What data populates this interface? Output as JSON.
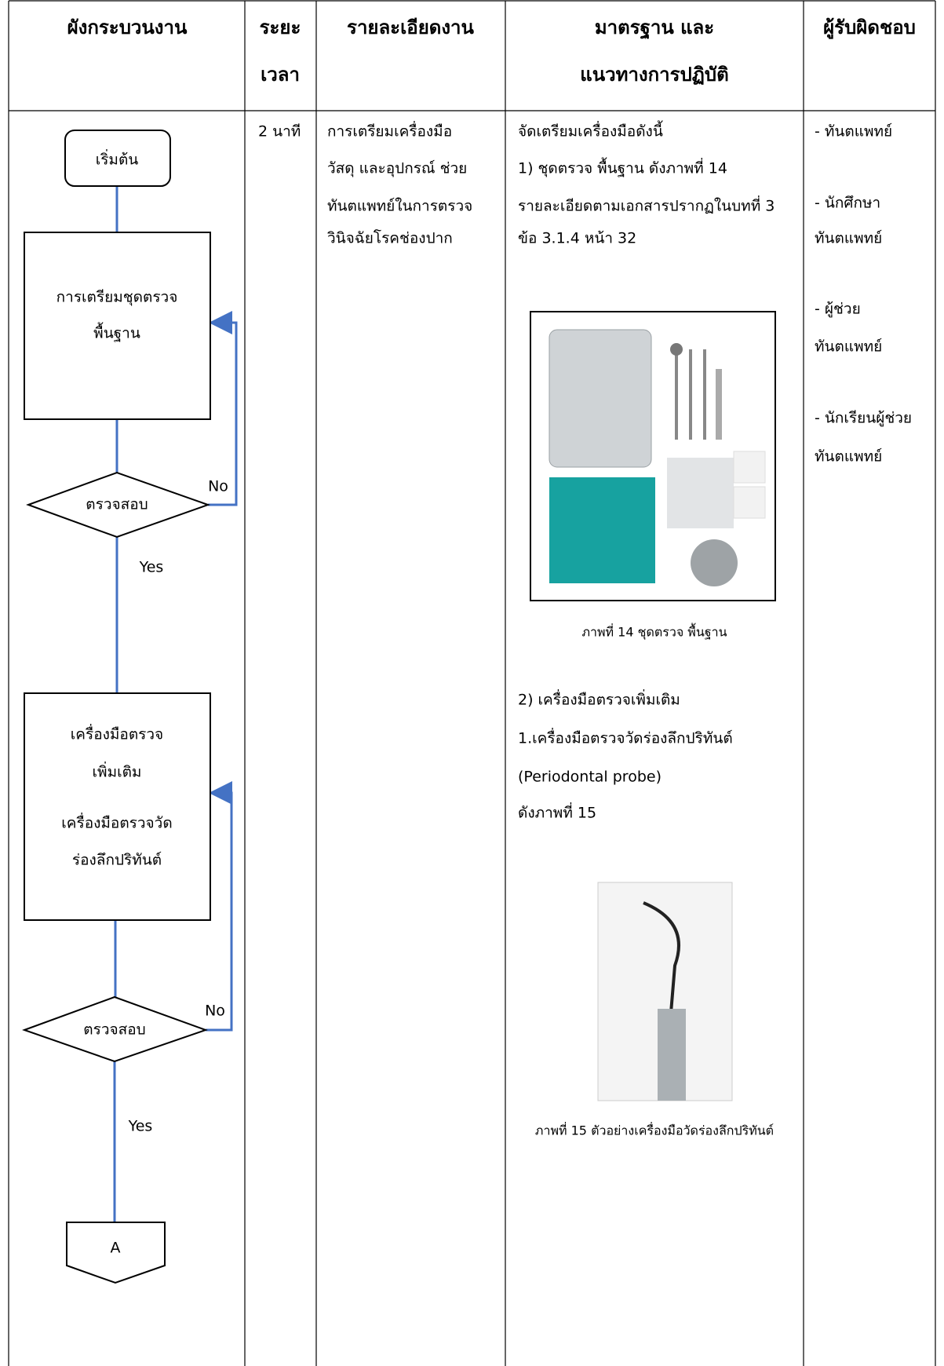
{
  "table": {
    "headers": [
      [
        "ผังกระบวนงาน"
      ],
      [
        "ระยะ",
        "เวลา"
      ],
      [
        "รายละเอียดงาน"
      ],
      [
        "มาตรฐาน และ",
        "แนวทางการปฏิบัติ"
      ],
      [
        "ผู้รับผิดชอบ"
      ]
    ],
    "time": "2 นาที",
    "detail": [
      "การเตรียมเครื่องมือ",
      "วัสดุ และอุปกรณ์ ช่วย",
      "ทันตแพทย์ในการตรวจ",
      "วินิจฉัยโรคช่องปาก"
    ],
    "standard": {
      "intro": [
        "จัดเตรียมเครื่องมือดังนี้",
        "1) ชุดตรวจ พื้นฐาน ดังภาพที่ 14",
        "รายละเอียดตามเอกสารปรากฏในบทที่ 3",
        "ข้อ 3.1.4 หน้า 32"
      ],
      "figure_14_caption": "ภาพที่ 14 ชุดตรวจ พื้นฐาน",
      "section_2": [
        "2) เครื่องมือตรวจเพิ่มเติม",
        "1.เครื่องมือตรวจวัดร่องลึกปริทันต์",
        "(Periodontal probe)",
        "ดังภาพที่ 15"
      ],
      "figure_15_caption": "ภาพที่ 15 ตัวอย่างเครื่องมือวัดร่องลึกปริทันต์"
    },
    "responsible": [
      [
        "- ทันตแพทย์"
      ],
      [
        "- นักศึกษา",
        "ทันตแพทย์"
      ],
      [
        "- ผู้ช่วย",
        "ทันตแพทย์"
      ],
      [
        "- นักเรียนผู้ช่วย",
        "ทันตแพทย์"
      ]
    ]
  },
  "flowchart": {
    "start": "เริ่มต้น",
    "step_1": [
      "การเตรียมชุดตรวจ",
      "พื้นฐาน"
    ],
    "check_1": "ตรวจสอบ",
    "no_1": "No",
    "yes_1": "Yes",
    "step_2": [
      "เครื่องมือตรวจ",
      "เพิ่มเติม",
      "เครื่องมือตรวจวัด",
      "ร่องลึกปริทันต์"
    ],
    "check_2": "ตรวจสอบ",
    "no_2": "No",
    "yes_2": "Yes",
    "connector": "A"
  }
}
